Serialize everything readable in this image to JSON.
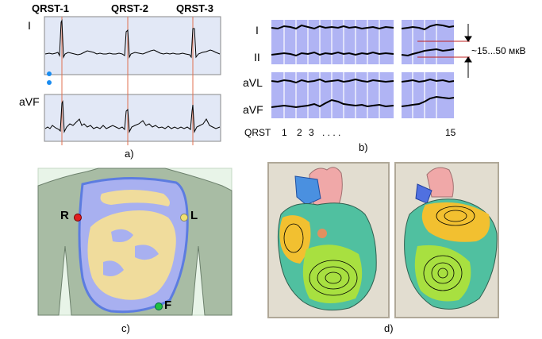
{
  "panel_a": {
    "qrst_labels": [
      "QRST-1",
      "QRST-2",
      "QRST-3"
    ],
    "lead_top": "I",
    "lead_bottom": "aVF",
    "caption": "a)"
  },
  "panel_b": {
    "leads": [
      "I",
      "II",
      "aVL",
      "aVF"
    ],
    "amplitude_label": "~15...50 мкВ",
    "axis_label": "QRST",
    "tick_1": "1",
    "tick_2": "2",
    "tick_3": "3",
    "tick_dots": ". . . .",
    "tick_last": "15",
    "caption": "b)"
  },
  "panel_c": {
    "electrode_r": "R",
    "electrode_l": "L",
    "electrode_f": "F",
    "caption": "c)",
    "colors": {
      "r": "#e02020",
      "l": "#f0e070",
      "f": "#20c040"
    }
  },
  "panel_d": {
    "caption": "d)"
  },
  "colors": {
    "ecg_bg": "#e2e8f6",
    "grid_bg": "#b0b4f4",
    "marker": "#e07050",
    "dot": "#1a8cf0",
    "torso": "#a8bca4",
    "lung_blue": "#a8b0f0",
    "lung_yellow": "#f0dc9c"
  }
}
